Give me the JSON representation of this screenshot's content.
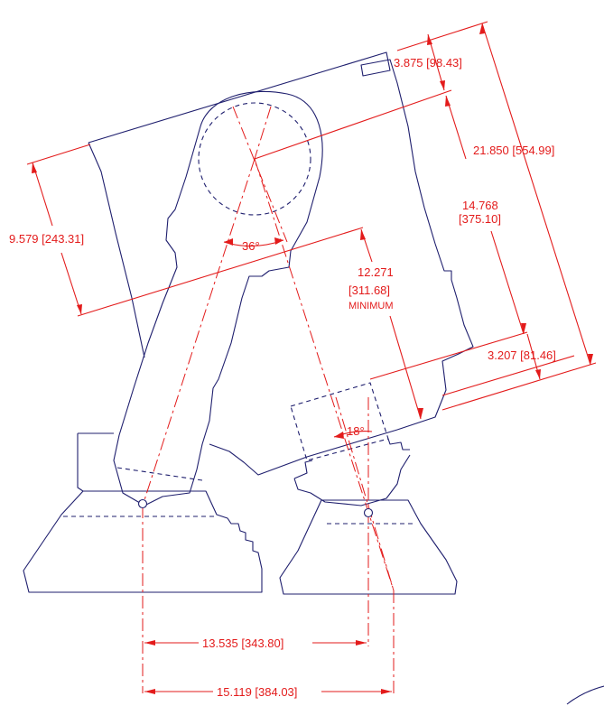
{
  "drawing": {
    "dimensions": {
      "overall_height": "21.850 [554.99]",
      "top_offset": "3.875 [98.43]",
      "pivot_to_bottom": "14.768",
      "pivot_to_bottom_mm": "[375.10]",
      "bottom_offset": "3.207 [81.46]",
      "left_height": "9.579 [243.31]",
      "clearance": "12.271",
      "clearance_mm": "[311.68]",
      "clearance_note": "MINIMUM",
      "leg_angle": "36°",
      "foot_angle": "18°",
      "foot_spacing_short": "13.535 [343.80]",
      "foot_spacing_long": "15.119 [384.03]"
    },
    "colors": {
      "outline": "#1f1f6e",
      "dimension": "#e31b1b",
      "background": "#ffffff"
    }
  }
}
